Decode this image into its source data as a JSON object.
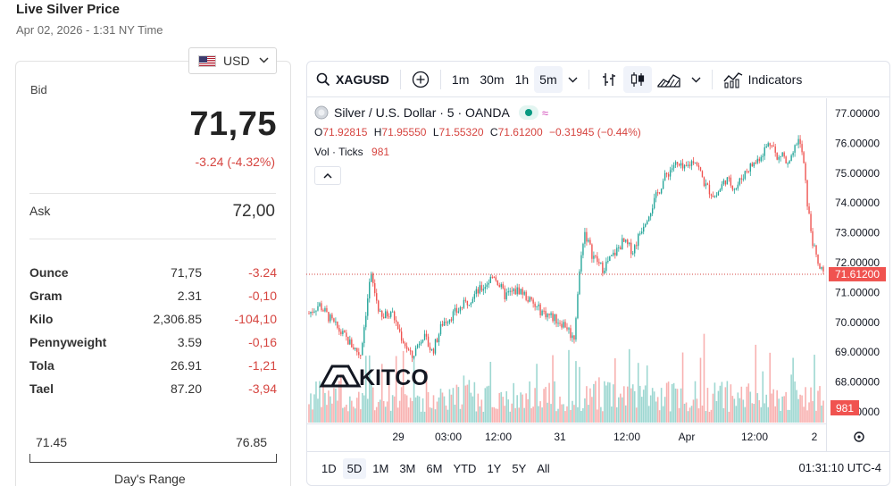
{
  "header": {
    "title": "Live Silver Price",
    "datetime": "Apr 02, 2026 - 1:31 NY Time"
  },
  "currency": {
    "selected": "USD"
  },
  "quote": {
    "bid_label": "Bid",
    "bid": "71,75",
    "change": "-3.24 (-4.32%)",
    "ask_label": "Ask",
    "ask": "72,00"
  },
  "units": [
    {
      "name": "Ounce",
      "price": "71,75",
      "change": "-3.24"
    },
    {
      "name": "Gram",
      "price": "2.31",
      "change": "-0,10"
    },
    {
      "name": "Kilo",
      "price": "2,306.85",
      "change": "-104,10"
    },
    {
      "name": "Pennyweight",
      "price": "3.59",
      "change": "-0,16"
    },
    {
      "name": "Tola",
      "price": "26.91",
      "change": "-1,21"
    },
    {
      "name": "Tael",
      "price": "87.20",
      "change": "-3,94"
    }
  ],
  "day_range": {
    "low": "71.45",
    "high": "76.85",
    "label": "Day's Range"
  },
  "chart_toolbar": {
    "symbol": "XAGUSD",
    "intervals": [
      "1m",
      "30m",
      "1h",
      "5m"
    ],
    "active_interval": "5m",
    "indicators_label": "Indicators"
  },
  "chart_legend": {
    "title": "Silver / U.S. Dollar · 5 · OANDA",
    "o_label": "O",
    "o_value": "71.92815",
    "h_label": "H",
    "h_value": "71.95550",
    "l_label": "L",
    "l_value": "71.55320",
    "c_label": "C",
    "c_value": "71.61200",
    "change": "−0.31945 (−0.44%)",
    "vol_label": "Vol · Ticks",
    "vol_value": "981"
  },
  "watermark": "KITCO",
  "range_buttons": [
    "1D",
    "5D",
    "1M",
    "3M",
    "6M",
    "YTD",
    "1Y",
    "5Y",
    "All"
  ],
  "active_range": "5D",
  "clock": "01:31:10 UTC-4",
  "colors": {
    "up": "#26a69a",
    "down": "#ef5350",
    "price_tag": "#f05350",
    "text_down": "#d64540"
  },
  "chart_data": {
    "type": "candlestick",
    "y_ticks": [
      "77.00000",
      "76.00000",
      "75.00000",
      "74.00000",
      "73.00000",
      "72.00000",
      "71.00000",
      "70.00000",
      "69.00000",
      "68.00000",
      "67.00000"
    ],
    "ylim": [
      67,
      77.2
    ],
    "x_ticks": [
      "29",
      "03:00",
      "12:00",
      "31",
      "12:00",
      "Apr",
      "12:00",
      "2"
    ],
    "last_price": "71.61200",
    "last_volume": "981",
    "price_path": [
      [
        0,
        70.3
      ],
      [
        0.02,
        70.6
      ],
      [
        0.05,
        69.9
      ],
      [
        0.08,
        69.3
      ],
      [
        0.1,
        68.9
      ],
      [
        0.12,
        71.6
      ],
      [
        0.14,
        70.1
      ],
      [
        0.16,
        70.4
      ],
      [
        0.18,
        69.5
      ],
      [
        0.2,
        68.8
      ],
      [
        0.22,
        69.6
      ],
      [
        0.24,
        69.0
      ],
      [
        0.26,
        70.0
      ],
      [
        0.29,
        70.4
      ],
      [
        0.32,
        70.9
      ],
      [
        0.34,
        71.2
      ],
      [
        0.36,
        71.6
      ],
      [
        0.38,
        70.9
      ],
      [
        0.41,
        71.1
      ],
      [
        0.44,
        70.5
      ],
      [
        0.47,
        70.2
      ],
      [
        0.5,
        69.9
      ],
      [
        0.515,
        69.4
      ],
      [
        0.525,
        71.5
      ],
      [
        0.535,
        73.1
      ],
      [
        0.55,
        72.3
      ],
      [
        0.57,
        71.8
      ],
      [
        0.59,
        72.2
      ],
      [
        0.61,
        72.7
      ],
      [
        0.63,
        72.4
      ],
      [
        0.65,
        73.3
      ],
      [
        0.67,
        74.0
      ],
      [
        0.69,
        74.8
      ],
      [
        0.71,
        75.3
      ],
      [
        0.73,
        75.1
      ],
      [
        0.75,
        75.5
      ],
      [
        0.77,
        74.6
      ],
      [
        0.79,
        74.2
      ],
      [
        0.81,
        74.8
      ],
      [
        0.83,
        74.5
      ],
      [
        0.85,
        75.1
      ],
      [
        0.87,
        75.4
      ],
      [
        0.89,
        75.9
      ],
      [
        0.9,
        76.1
      ],
      [
        0.91,
        75.4
      ],
      [
        0.92,
        75.7
      ],
      [
        0.93,
        75.2
      ],
      [
        0.94,
        75.5
      ],
      [
        0.95,
        76.2
      ],
      [
        0.96,
        75.6
      ],
      [
        0.97,
        73.8
      ],
      [
        0.98,
        72.6
      ],
      [
        0.99,
        71.9
      ],
      [
        1.0,
        71.61
      ]
    ]
  }
}
